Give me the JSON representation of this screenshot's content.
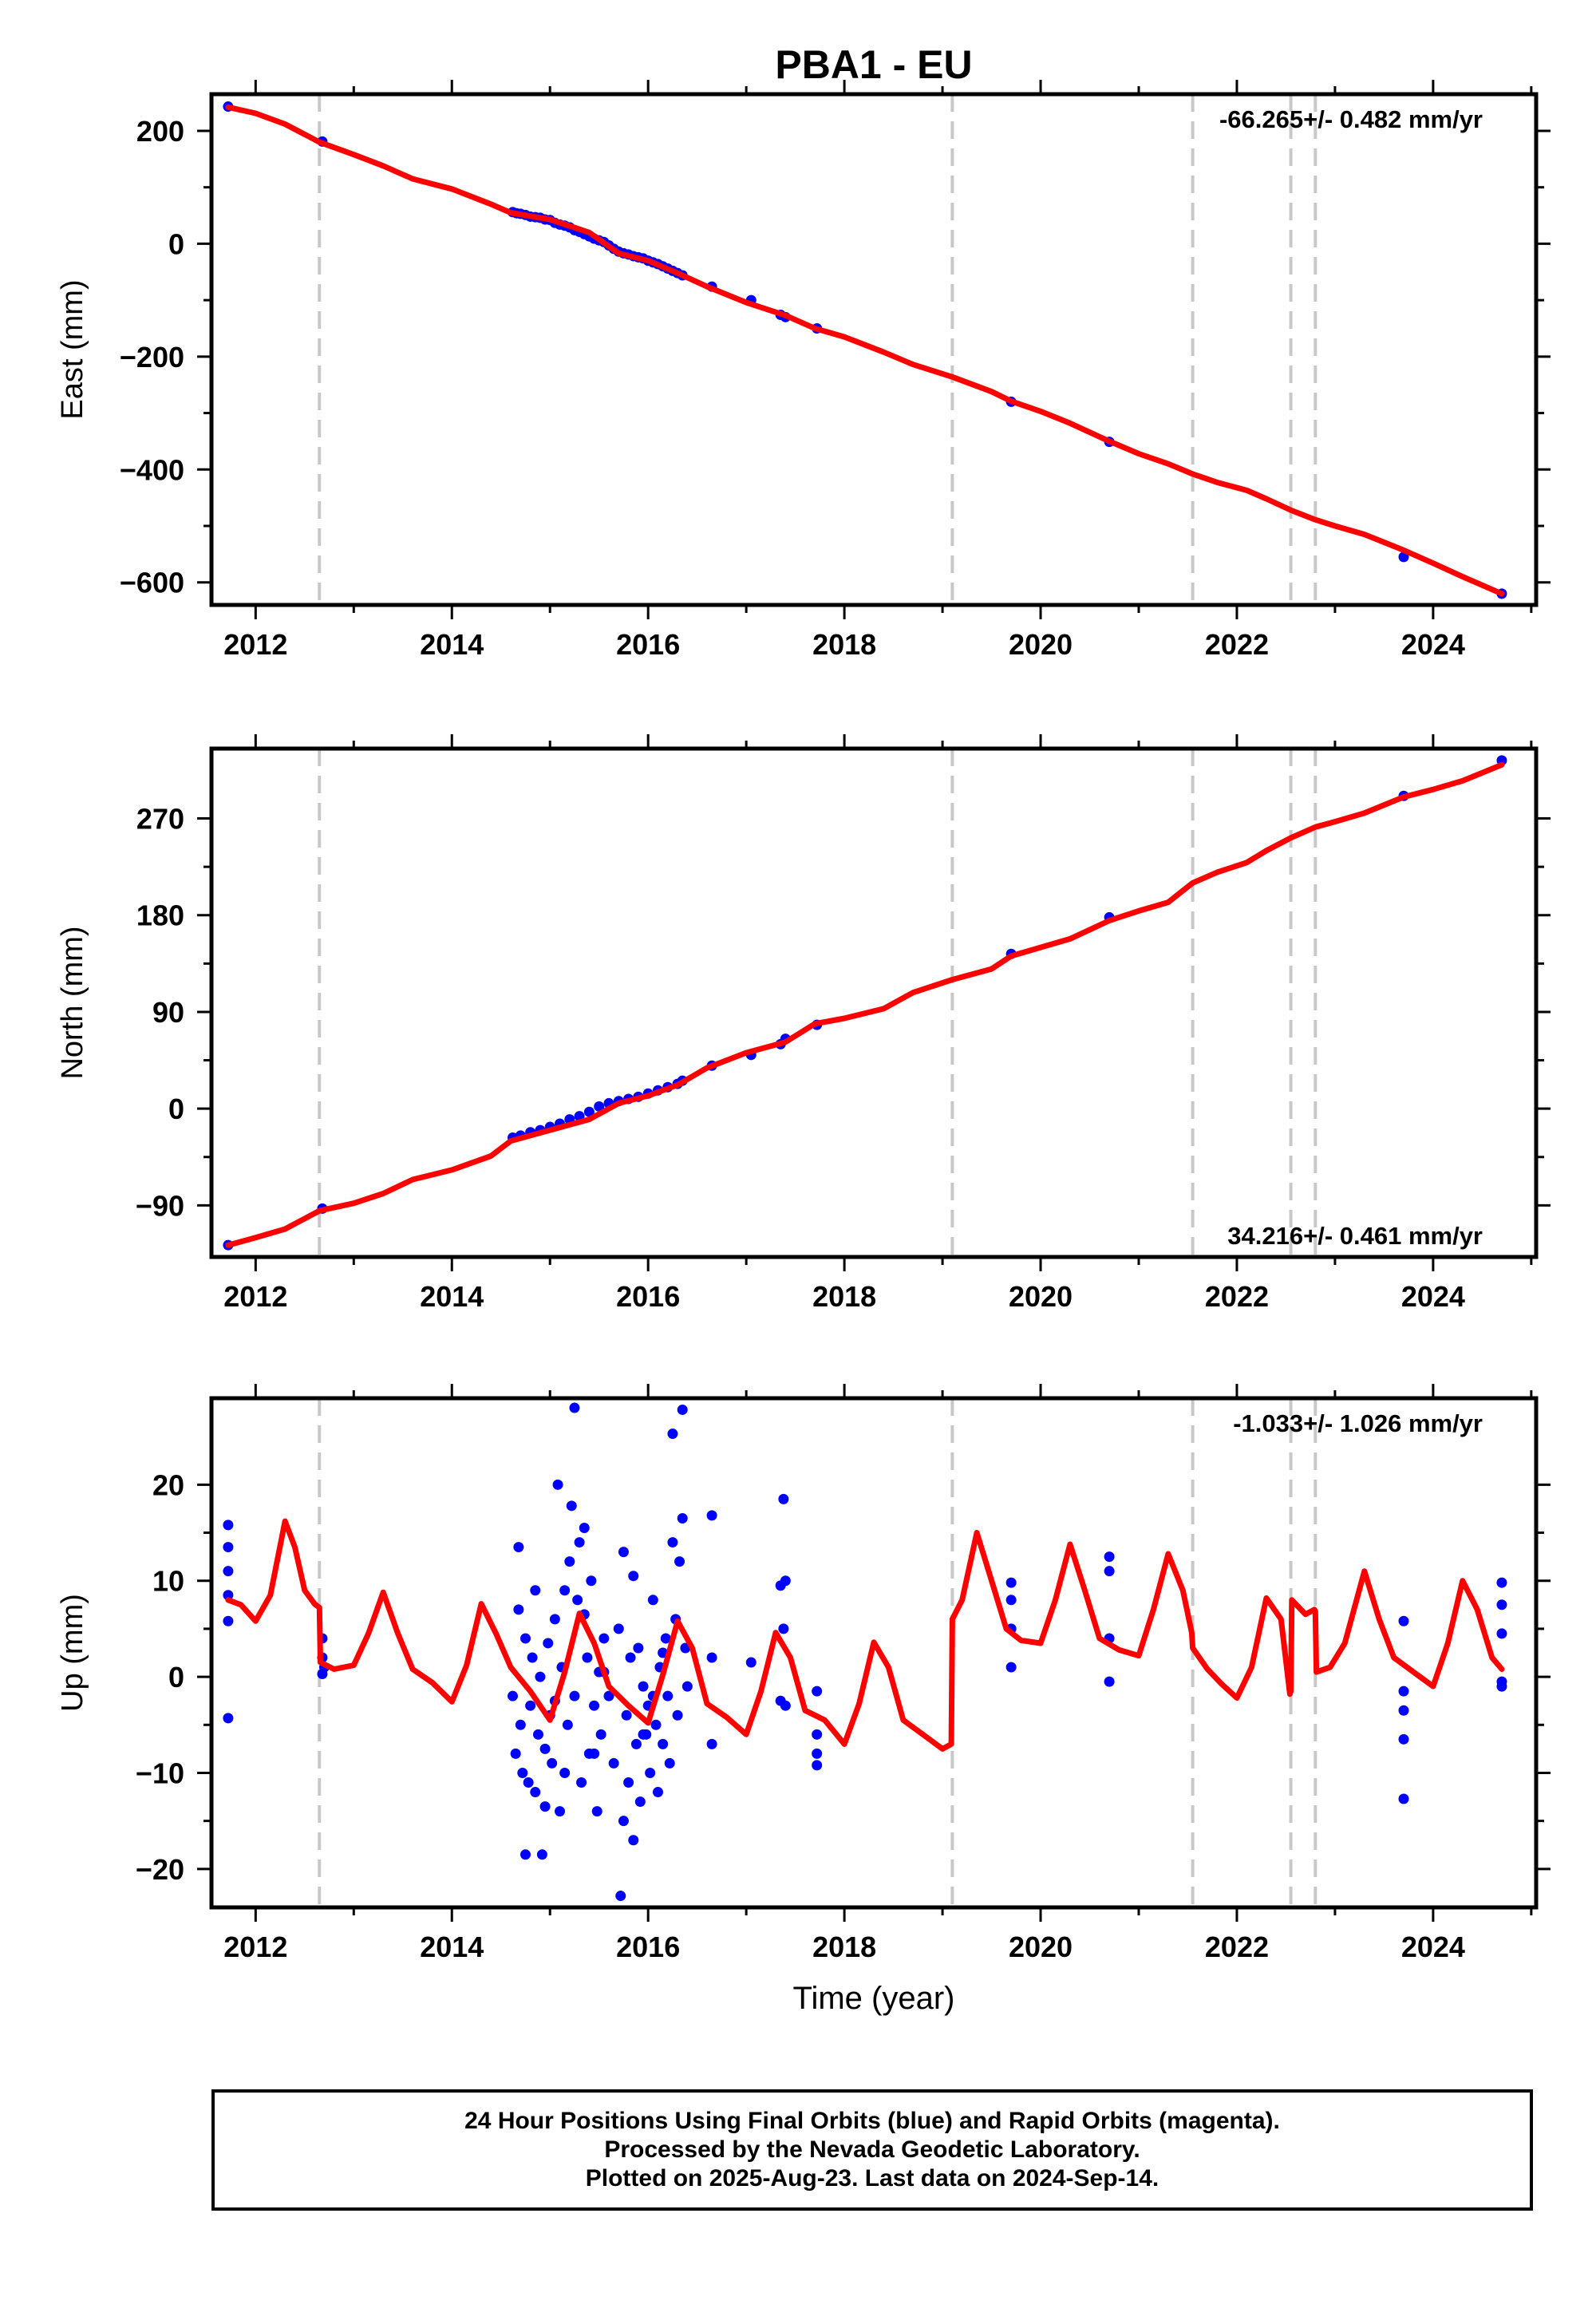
{
  "title": "PBA1 - EU",
  "xlabel": "Time (year)",
  "footer": [
    "24 Hour Positions Using Final Orbits (blue) and Rapid Orbits (magenta).",
    "Processed by the Nevada Geodetic Laboratory.",
    "Plotted on 2025-Aug-23. Last data on 2024-Sep-14."
  ],
  "colors": {
    "data": "#0000ff",
    "model": "#ff0000",
    "steps": "#c8c8c8",
    "frame": "#000000"
  },
  "chart_data": [
    {
      "type": "scatter",
      "ylabel": "East (mm)",
      "rate_label": "-66.265+/- 0.482 mm/yr",
      "xlim": [
        2011.55,
        2025.05
      ],
      "ylim": [
        -640,
        265
      ],
      "xticks": [
        2012,
        2014,
        2016,
        2018,
        2020,
        2022,
        2024
      ],
      "yticks": [
        200,
        0,
        -200,
        -400,
        -600
      ],
      "ytick_labels": [
        "200",
        "0",
        "−200",
        "−400",
        "−600"
      ],
      "step_lines": [
        2012.65,
        2019.1,
        2021.55,
        2022.55,
        2022.8
      ],
      "series": [
        {
          "kind": "model",
          "x": [
            2011.72,
            2012.0,
            2012.3,
            2012.65,
            2013.0,
            2013.3,
            2013.6,
            2014.0,
            2014.4,
            2014.6,
            2015.0,
            2015.4,
            2015.7,
            2016.0,
            2016.3,
            2016.6,
            2017.0,
            2017.4,
            2017.7,
            2018.0,
            2018.4,
            2018.7,
            2019.1,
            2019.5,
            2019.7,
            2020.0,
            2020.3,
            2020.7,
            2021.0,
            2021.3,
            2021.55,
            2021.8,
            2022.1,
            2022.3,
            2022.55,
            2022.8,
            2023.0,
            2023.3,
            2023.7,
            2024.0,
            2024.3,
            2024.7
          ],
          "y": [
            242,
            231,
            212,
            180,
            158,
            138,
            115,
            97,
            70,
            55,
            43,
            20,
            -17,
            -30,
            -52,
            -76,
            -104,
            -127,
            -150,
            -165,
            -192,
            -214,
            -236,
            -262,
            -279,
            -297,
            -318,
            -350,
            -372,
            -390,
            -408,
            -423,
            -437,
            -452,
            -472,
            -489,
            -500,
            -515,
            -543,
            -566,
            -590,
            -620
          ]
        },
        {
          "kind": "data",
          "x": [
            2011.72,
            2012.68,
            2014.62,
            2014.66,
            2014.7,
            2014.75,
            2014.8,
            2014.85,
            2014.9,
            2014.95,
            2015.0,
            2015.05,
            2015.1,
            2015.15,
            2015.2,
            2015.25,
            2015.3,
            2015.35,
            2015.4,
            2015.45,
            2015.5,
            2015.55,
            2015.6,
            2015.65,
            2015.7,
            2015.75,
            2015.8,
            2015.85,
            2015.9,
            2015.95,
            2016.0,
            2016.05,
            2016.1,
            2016.15,
            2016.2,
            2016.25,
            2016.3,
            2016.35,
            2016.65,
            2017.05,
            2017.35,
            2017.4,
            2017.72,
            2019.7,
            2020.7,
            2023.7,
            2024.7
          ],
          "y": [
            243,
            181,
            56,
            54,
            53,
            51,
            48,
            47,
            46,
            43,
            42,
            37,
            34,
            32,
            29,
            24,
            21,
            17,
            13,
            9,
            6,
            3,
            -3,
            -9,
            -14,
            -17,
            -19,
            -22,
            -24,
            -26,
            -30,
            -33,
            -36,
            -40,
            -44,
            -48,
            -52,
            -56,
            -76,
            -100,
            -126,
            -130,
            -150,
            -280,
            -351,
            -555,
            -620
          ]
        }
      ]
    },
    {
      "type": "scatter",
      "ylabel": "North (mm)",
      "rate_label": "34.216+/- 0.461 mm/yr",
      "xlim": [
        2011.55,
        2025.05
      ],
      "ylim": [
        -138,
        335
      ],
      "xticks": [
        2012,
        2014,
        2016,
        2018,
        2020,
        2022,
        2024
      ],
      "yticks": [
        270,
        180,
        90,
        0,
        -90
      ],
      "ytick_labels": [
        "270",
        "180",
        "90",
        "0",
        "−90"
      ],
      "step_lines": [
        2012.65,
        2019.1,
        2021.55,
        2022.55,
        2022.8
      ],
      "series": [
        {
          "kind": "model",
          "x": [
            2011.72,
            2012.0,
            2012.3,
            2012.65,
            2013.0,
            2013.3,
            2013.6,
            2014.0,
            2014.4,
            2014.6,
            2015.0,
            2015.4,
            2015.7,
            2016.0,
            2016.3,
            2016.6,
            2017.0,
            2017.4,
            2017.7,
            2018.0,
            2018.4,
            2018.7,
            2019.1,
            2019.5,
            2019.7,
            2020.0,
            2020.3,
            2020.7,
            2021.0,
            2021.3,
            2021.55,
            2021.8,
            2022.1,
            2022.3,
            2022.55,
            2022.8,
            2023.0,
            2023.3,
            2023.7,
            2024.0,
            2024.3,
            2024.7
          ],
          "y": [
            -127,
            -120,
            -112,
            -95,
            -88,
            -79,
            -66,
            -57,
            -44,
            -30,
            -20,
            -10,
            5,
            12,
            22,
            38,
            52,
            62,
            79,
            84,
            93,
            108,
            120,
            130,
            142,
            150,
            158,
            175,
            184,
            192,
            210,
            220,
            229,
            240,
            252,
            262,
            267,
            275,
            290,
            297,
            305,
            320
          ]
        },
        {
          "kind": "data",
          "x": [
            2011.72,
            2012.68,
            2014.62,
            2014.7,
            2014.8,
            2014.9,
            2015.0,
            2015.1,
            2015.2,
            2015.3,
            2015.4,
            2015.5,
            2015.6,
            2015.7,
            2015.8,
            2015.9,
            2016.0,
            2016.1,
            2016.2,
            2016.3,
            2016.35,
            2016.65,
            2017.05,
            2017.35,
            2017.4,
            2017.72,
            2019.7,
            2020.7,
            2023.7,
            2024.7
          ],
          "y": [
            -127,
            -93,
            -27,
            -25,
            -22,
            -20,
            -17,
            -14,
            -10,
            -7,
            -3,
            2,
            5,
            7,
            9,
            11,
            14,
            17,
            20,
            23,
            26,
            40,
            50,
            60,
            65,
            78,
            144,
            178,
            291,
            324
          ]
        }
      ]
    },
    {
      "type": "scatter",
      "ylabel": "Up (mm)",
      "rate_label": "-1.033+/- 1.026 mm/yr",
      "xlim": [
        2011.55,
        2025.05
      ],
      "ylim": [
        -24,
        29
      ],
      "xticks": [
        2012,
        2014,
        2016,
        2018,
        2020,
        2022,
        2024
      ],
      "yticks": [
        20,
        10,
        0,
        -10,
        -20
      ],
      "ytick_labels": [
        "20",
        "10",
        "0",
        "−10",
        "−20"
      ],
      "step_lines": [
        2012.65,
        2019.1,
        2021.55,
        2022.55,
        2022.8
      ],
      "series": [
        {
          "kind": "model",
          "x": [
            2011.72,
            2011.85,
            2012.0,
            2012.15,
            2012.3,
            2012.4,
            2012.5,
            2012.6,
            2012.65,
            2012.66,
            2012.8,
            2013.0,
            2013.15,
            2013.3,
            2013.45,
            2013.6,
            2013.8,
            2014.0,
            2014.15,
            2014.3,
            2014.45,
            2014.6,
            2014.8,
            2015.0,
            2015.15,
            2015.3,
            2015.45,
            2015.6,
            2015.8,
            2016.0,
            2016.15,
            2016.3,
            2016.45,
            2016.6,
            2016.8,
            2017.0,
            2017.15,
            2017.3,
            2017.45,
            2017.6,
            2017.8,
            2018.0,
            2018.15,
            2018.3,
            2018.45,
            2018.6,
            2018.8,
            2019.0,
            2019.09,
            2019.1,
            2019.2,
            2019.35,
            2019.5,
            2019.65,
            2019.8,
            2020.0,
            2020.15,
            2020.3,
            2020.45,
            2020.6,
            2020.8,
            2021.0,
            2021.15,
            2021.3,
            2021.45,
            2021.54,
            2021.55,
            2021.7,
            2021.85,
            2022.0,
            2022.15,
            2022.3,
            2022.45,
            2022.54,
            2022.55,
            2022.56,
            2022.7,
            2022.79,
            2022.8,
            2022.81,
            2022.95,
            2023.1,
            2023.3,
            2023.45,
            2023.6,
            2023.8,
            2024.0,
            2024.15,
            2024.3,
            2024.45,
            2024.6,
            2024.7
          ],
          "y": [
            8.0,
            7.5,
            5.8,
            8.5,
            16.2,
            13.5,
            9.0,
            7.6,
            7.2,
            1.5,
            0.8,
            1.2,
            4.5,
            8.8,
            4.5,
            0.8,
            -0.6,
            -2.6,
            1.2,
            7.6,
            4.5,
            1.0,
            -1.5,
            -4.5,
            0.5,
            6.6,
            3.5,
            -1.0,
            -3.0,
            -4.8,
            0.2,
            5.8,
            3.0,
            -2.8,
            -4.2,
            -6.0,
            -1.5,
            4.6,
            2.0,
            -3.5,
            -4.5,
            -7.0,
            -2.8,
            3.6,
            1.0,
            -4.5,
            -6.0,
            -7.5,
            -7.0,
            6.0,
            8.0,
            15.0,
            10.0,
            5.0,
            3.8,
            3.5,
            8.0,
            13.8,
            9.0,
            4.0,
            2.8,
            2.2,
            7.0,
            12.8,
            9.0,
            4.6,
            3.0,
            0.8,
            -0.8,
            -2.2,
            1.0,
            8.2,
            6.0,
            -1.8,
            -1.5,
            8.0,
            6.5,
            7.0,
            6.8,
            0.5,
            1.0,
            3.5,
            11.0,
            6.0,
            2.0,
            0.5,
            -1.0,
            3.5,
            10.0,
            7.0,
            2.0,
            0.8
          ]
        },
        {
          "kind": "data",
          "x": [
            2011.72,
            2011.72,
            2011.72,
            2011.72,
            2011.72,
            2011.72,
            2012.68,
            2012.68,
            2012.68,
            2012.7,
            2014.62,
            2014.65,
            2014.68,
            2014.7,
            2014.72,
            2014.75,
            2014.78,
            2014.8,
            2014.82,
            2014.85,
            2014.88,
            2014.9,
            2014.92,
            2014.95,
            2014.98,
            2015.0,
            2015.02,
            2015.05,
            2015.08,
            2015.1,
            2015.12,
            2015.15,
            2015.18,
            2015.2,
            2015.22,
            2015.25,
            2015.28,
            2015.3,
            2015.32,
            2015.35,
            2015.38,
            2015.4,
            2015.42,
            2015.45,
            2015.48,
            2015.5,
            2015.52,
            2015.55,
            2015.6,
            2015.65,
            2015.7,
            2015.72,
            2015.75,
            2015.78,
            2015.8,
            2015.82,
            2015.85,
            2015.88,
            2015.9,
            2015.92,
            2015.95,
            2015.98,
            2016.0,
            2016.02,
            2016.05,
            2016.08,
            2016.1,
            2016.12,
            2016.15,
            2016.18,
            2016.2,
            2016.22,
            2016.25,
            2016.28,
            2016.3,
            2016.32,
            2016.35,
            2016.38,
            2016.4,
            2014.68,
            2014.75,
            2014.85,
            2014.95,
            2015.05,
            2015.15,
            2015.25,
            2015.35,
            2015.45,
            2015.55,
            2015.75,
            2015.85,
            2015.95,
            2016.05,
            2016.15,
            2016.25,
            2016.35,
            2016.65,
            2016.65,
            2016.65,
            2017.05,
            2017.35,
            2017.35,
            2017.38,
            2017.38,
            2017.4,
            2017.4,
            2017.72,
            2017.72,
            2017.72,
            2017.72,
            2019.7,
            2019.7,
            2019.7,
            2019.7,
            2020.7,
            2020.7,
            2020.7,
            2020.7,
            2023.7,
            2023.7,
            2023.7,
            2023.7,
            2023.7,
            2024.7,
            2024.7,
            2024.7,
            2024.7,
            2024.7
          ],
          "y": [
            15.8,
            13.5,
            8.5,
            5.8,
            -4.3,
            11.0,
            4.0,
            0.3,
            2.0,
            1.0,
            -2.0,
            -8.0,
            13.5,
            -5.0,
            -10.0,
            4.0,
            -11.0,
            -3.0,
            2.0,
            -12.0,
            -6.0,
            0.0,
            -18.5,
            -7.5,
            3.5,
            -4.0,
            -9.0,
            6.0,
            20.0,
            -14.0,
            1.0,
            9.0,
            -5.0,
            12.0,
            17.8,
            -2.0,
            8.0,
            14.0,
            -11.0,
            6.5,
            2.0,
            -8.0,
            10.0,
            -3.0,
            -14.0,
            0.5,
            -6.0,
            4.0,
            -2.0,
            -9.0,
            5.0,
            -22.8,
            13.0,
            -4.0,
            -11.0,
            2.0,
            -17.0,
            -7.0,
            3.0,
            -13.0,
            -1.0,
            -6.0,
            -3.0,
            -10.0,
            8.0,
            -5.0,
            -12.0,
            1.0,
            -7.0,
            4.0,
            -2.0,
            -9.0,
            25.3,
            6.0,
            -4.0,
            12.0,
            16.5,
            3.0,
            -1.0,
            7.0,
            -18.5,
            9.0,
            -13.5,
            -2.5,
            -10.0,
            28.0,
            15.5,
            -8.0,
            0.5,
            -15.0,
            10.5,
            -6.0,
            -2.0,
            2.5,
            14.0,
            27.8,
            -7.0,
            16.8,
            2.0,
            1.5,
            9.5,
            -2.5,
            18.5,
            5.0,
            -3.0,
            10.0,
            -1.5,
            -6.0,
            -9.2,
            -8.0,
            9.8,
            5.0,
            1.0,
            8.0,
            12.5,
            4.0,
            -0.5,
            11.0,
            -12.7,
            -6.5,
            -1.5,
            5.8,
            -3.5,
            9.8,
            7.5,
            -1.0,
            4.5,
            -0.5
          ]
        }
      ]
    }
  ]
}
